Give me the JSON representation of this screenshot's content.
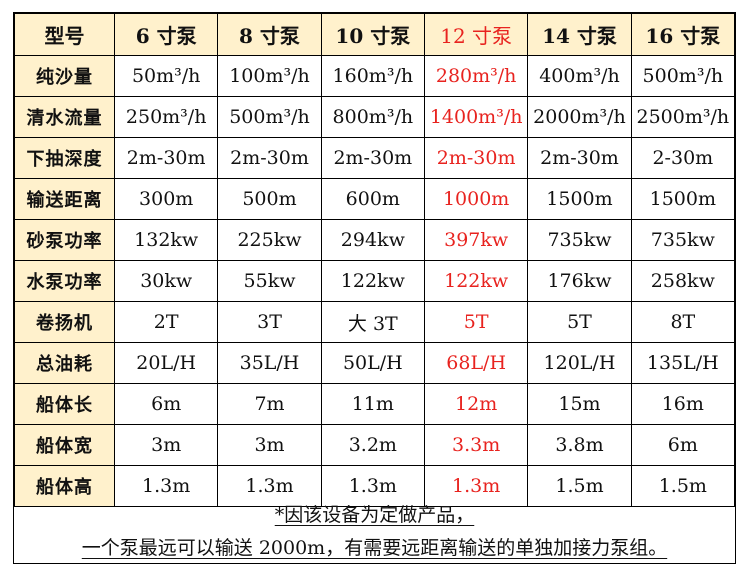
{
  "table": {
    "headers": [
      "型号",
      "6 寸泵",
      "8 寸泵",
      "10 寸泵",
      "12 寸泵",
      "14 寸泵",
      "16 寸泵"
    ],
    "highlight_color": "#e8231f",
    "header_bg": "#fff1cc",
    "rows": [
      {
        "label": "纯沙量",
        "values": [
          "50m³/h",
          "100m³/h",
          "160m³/h",
          "280m³/h",
          "400m³/h",
          "500m³/h"
        ]
      },
      {
        "label": "清水流量",
        "values": [
          "250m³/h",
          "500m³/h",
          "800m³/h",
          "1400m³/h",
          "2000m³/h",
          "2500m³/h"
        ]
      },
      {
        "label": "下抽深度",
        "values": [
          "2m-30m",
          "2m-30m",
          "2m-30m",
          "2m-30m",
          "2m-30m",
          "2-30m"
        ]
      },
      {
        "label": "输送距离",
        "values": [
          "300m",
          "500m",
          "600m",
          "1000m",
          "1500m",
          "1500m"
        ]
      },
      {
        "label": "砂泵功率",
        "values": [
          "132kw",
          "225kw",
          "294kw",
          "397kw",
          "735kw",
          "735kw"
        ]
      },
      {
        "label": "水泵功率",
        "values": [
          "30kw",
          "55kw",
          "122kw",
          "122kw",
          "176kw",
          "258kw"
        ]
      },
      {
        "label": "卷扬机",
        "values": [
          "2T",
          "3T",
          "大 3T",
          "5T",
          "5T",
          "8T"
        ]
      },
      {
        "label": "总油耗",
        "values": [
          "20L/H",
          "35L/H",
          "50L/H",
          "68L/H",
          "120L/H",
          "135L/H"
        ]
      },
      {
        "label": "船体长",
        "values": [
          "6m",
          "7m",
          "11m",
          "12m",
          "15m",
          "16m"
        ]
      },
      {
        "label": "船体宽",
        "values": [
          "3m",
          "3m",
          "3.2m",
          "3.3m",
          "3.8m",
          "6m"
        ]
      },
      {
        "label": "船体高",
        "values": [
          "1.3m",
          "1.3m",
          "1.3m",
          "1.3m",
          "1.5m",
          "1.5m"
        ]
      }
    ]
  },
  "note": {
    "line1": "*因该设备为定做产品，",
    "line2": "一个泵最远可以输送 2000m，有需要远距离输送的单独加接力泵组。"
  }
}
